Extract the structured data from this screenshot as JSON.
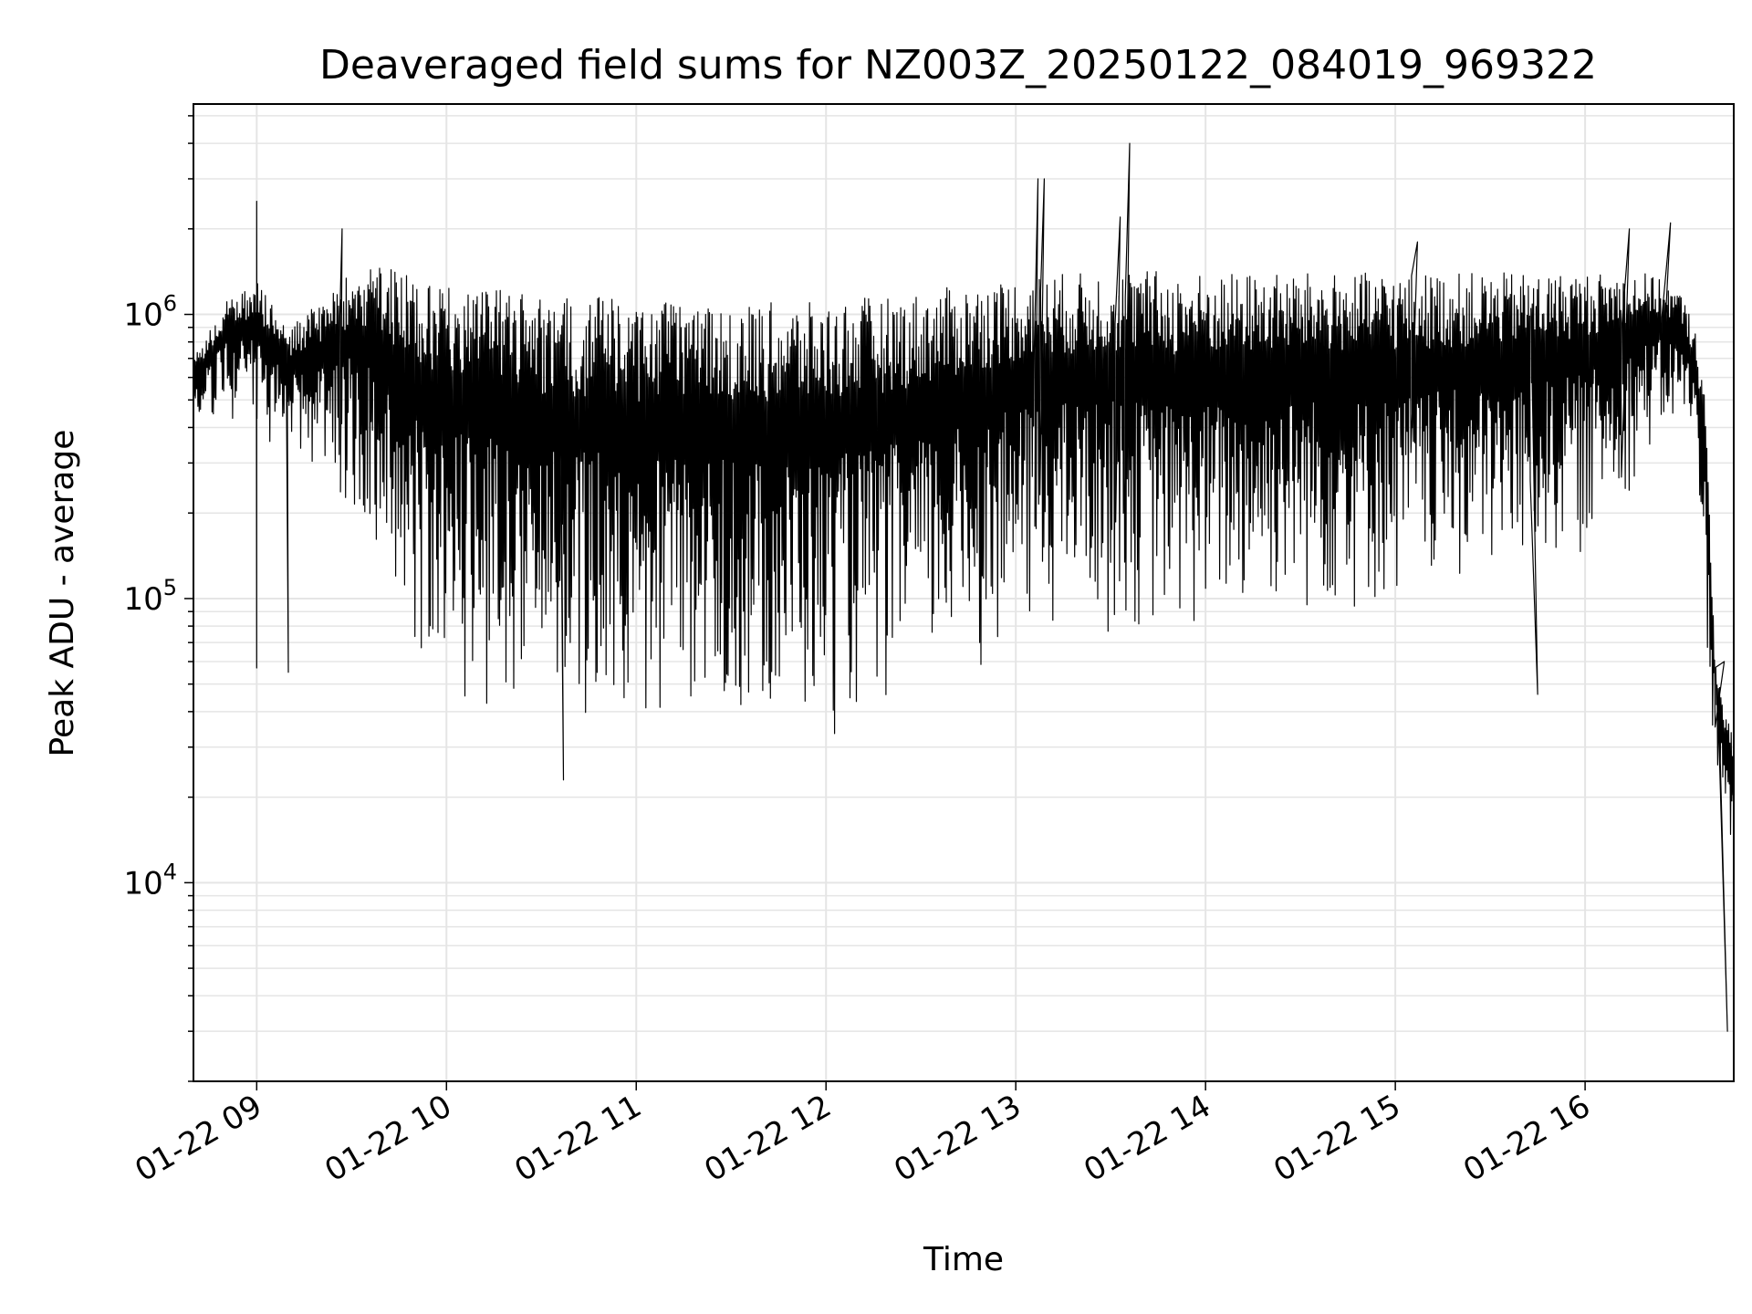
{
  "chart_data": {
    "type": "line",
    "title": "Deaveraged field sums for NZ003Z_20250122_084019_969322",
    "xlabel": "Time",
    "ylabel": "Peak ADU - average",
    "yscale": "log",
    "ylim": [
      2000,
      5500000
    ],
    "xlim": [
      "01-22 08:40",
      "01-22 16:47"
    ],
    "grid": true,
    "line_color": "#000000",
    "grid_color": "#e5e5e5",
    "x_ticks": [
      {
        "value": "01-22 09:00",
        "label": "01-22 09"
      },
      {
        "value": "01-22 10:00",
        "label": "01-22 10"
      },
      {
        "value": "01-22 11:00",
        "label": "01-22 11"
      },
      {
        "value": "01-22 12:00",
        "label": "01-22 12"
      },
      {
        "value": "01-22 13:00",
        "label": "01-22 13"
      },
      {
        "value": "01-22 14:00",
        "label": "01-22 14"
      },
      {
        "value": "01-22 15:00",
        "label": "01-22 15"
      },
      {
        "value": "01-22 16:00",
        "label": "01-22 16"
      }
    ],
    "y_ticks": [
      {
        "value": 10000,
        "base": "10",
        "exp": "4"
      },
      {
        "value": 100000,
        "base": "10",
        "exp": "5"
      },
      {
        "value": 1000000,
        "base": "10",
        "exp": "6"
      }
    ],
    "series": [
      {
        "x": [
          "01-22 08:40",
          "01-22 08:50",
          "01-22 09:00",
          "01-22 09:10",
          "01-22 09:20",
          "01-22 09:30",
          "01-22 09:40",
          "01-22 09:50",
          "01-22 10:00",
          "01-22 10:10",
          "01-22 10:20",
          "01-22 10:30",
          "01-22 10:40",
          "01-22 10:50",
          "01-22 11:00",
          "01-22 11:10",
          "01-22 11:20",
          "01-22 11:30",
          "01-22 11:40",
          "01-22 11:50",
          "01-22 12:00",
          "01-22 12:10",
          "01-22 12:20",
          "01-22 12:30",
          "01-22 12:40",
          "01-22 12:50",
          "01-22 13:00",
          "01-22 13:10",
          "01-22 13:20",
          "01-22 13:30",
          "01-22 13:40",
          "01-22 13:50",
          "01-22 14:00",
          "01-22 14:10",
          "01-22 14:20",
          "01-22 14:30",
          "01-22 14:40",
          "01-22 14:50",
          "01-22 15:00",
          "01-22 15:10",
          "01-22 15:20",
          "01-22 15:30",
          "01-22 15:40",
          "01-22 15:50",
          "01-22 16:00",
          "01-22 16:10",
          "01-22 16:20",
          "01-22 16:30",
          "01-22 16:35",
          "01-22 16:38",
          "01-22 16:41",
          "01-22 16:44",
          "01-22 16:46",
          "01-22 16:47"
        ],
        "upper": [
          700000,
          1100000,
          1300000,
          900000,
          1100000,
          1400000,
          1500000,
          1350000,
          1300000,
          1250000,
          1200000,
          1150000,
          1150000,
          1150000,
          1100000,
          1100000,
          1100000,
          1100000,
          1100000,
          1100000,
          1100000,
          1150000,
          1150000,
          1200000,
          1250000,
          1300000,
          1350000,
          1400000,
          1400000,
          1450000,
          1450000,
          1400000,
          1400000,
          1400000,
          1400000,
          1400000,
          1400000,
          1400000,
          1400000,
          1400000,
          1400000,
          1400000,
          1400000,
          1400000,
          1400000,
          1400000,
          1400000,
          1200000,
          900000,
          500000,
          70000,
          40000,
          35000,
          30000
        ],
        "lower": [
          400000,
          450000,
          350000,
          300000,
          250000,
          200000,
          120000,
          60000,
          45000,
          40000,
          38000,
          35000,
          33000,
          32000,
          30000,
          30000,
          30000,
          30000,
          30000,
          30000,
          31000,
          34000,
          38000,
          42000,
          48000,
          55000,
          65000,
          70000,
          75000,
          70000,
          70000,
          70000,
          70000,
          75000,
          80000,
          80000,
          80000,
          80000,
          85000,
          90000,
          95000,
          100000,
          110000,
          120000,
          140000,
          200000,
          300000,
          400000,
          300000,
          80000,
          25000,
          18000,
          9000,
          15000
        ],
        "spikes": [
          {
            "x": "01-22 09:00",
            "y": 2500000
          },
          {
            "x": "01-22 09:00",
            "y": 57000
          },
          {
            "x": "01-22 09:10",
            "y": 55000
          },
          {
            "x": "01-22 09:27",
            "y": 2000000
          },
          {
            "x": "01-22 10:37",
            "y": 23000
          },
          {
            "x": "01-22 13:07",
            "y": 3000000
          },
          {
            "x": "01-22 13:09",
            "y": 3000000
          },
          {
            "x": "01-22 13:36",
            "y": 4000000
          },
          {
            "x": "01-22 13:33",
            "y": 2200000
          },
          {
            "x": "01-22 15:07",
            "y": 1800000
          },
          {
            "x": "01-22 15:45",
            "y": 46000
          },
          {
            "x": "01-22 16:14",
            "y": 2000000
          },
          {
            "x": "01-22 16:27",
            "y": 2100000
          },
          {
            "x": "01-22 16:45",
            "y": 3000
          },
          {
            "x": "01-22 16:44",
            "y": 60000
          }
        ]
      }
    ]
  }
}
